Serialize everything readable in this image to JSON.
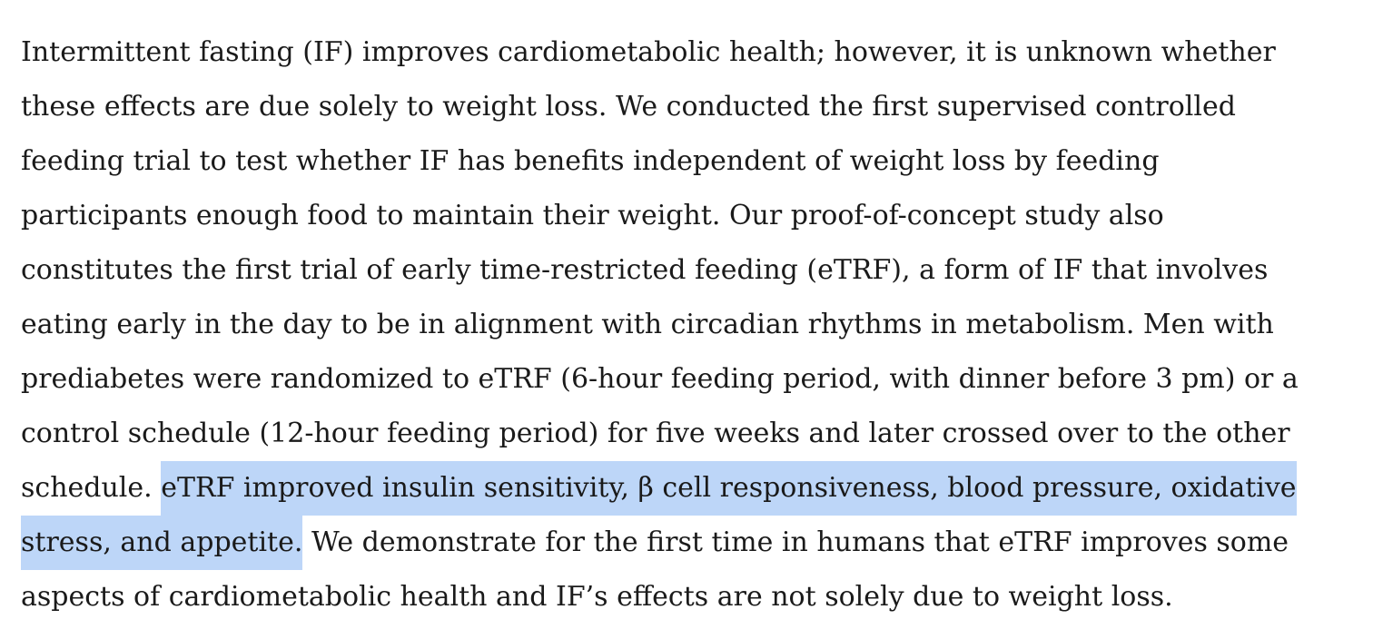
{
  "paragraph": {
    "lines": [
      [
        {
          "text": "Intermittent fasting (IF) improves cardiometabolic health; however, it is unknown whether"
        }
      ],
      [
        {
          "text": "these effects are due solely to weight loss. We conducted the first supervised controlled"
        }
      ],
      [
        {
          "text": "feeding trial to test whether IF has benefits independent of weight loss by feeding"
        }
      ],
      [
        {
          "text": "participants enough food to maintain their weight. Our proof-of-concept study also"
        }
      ],
      [
        {
          "text": "constitutes the first trial of early time-restricted feeding (eTRF), a form of IF that involves"
        }
      ],
      [
        {
          "text": "eating early in the day to be in alignment with circadian rhythms in metabolism. Men with"
        }
      ],
      [
        {
          "text": "prediabetes were randomized to eTRF (6-hour feeding period, with dinner before 3 pm) or a"
        }
      ],
      [
        {
          "text": "control schedule (12-hour feeding period) for five weeks and later crossed over to the other"
        }
      ],
      [
        {
          "text": "schedule. "
        },
        {
          "text": "eTRF improved insulin sensitivity, β cell responsiveness, blood pressure, oxidative",
          "highlight": true
        }
      ],
      [
        {
          "text": "stress, and appetite.",
          "highlight": true
        },
        {
          "text": " We demonstrate for the first time in humans that eTRF improves some"
        }
      ],
      [
        {
          "text": "aspects of cardiometabolic health and IF’s effects are not solely due to weight loss."
        }
      ]
    ]
  }
}
